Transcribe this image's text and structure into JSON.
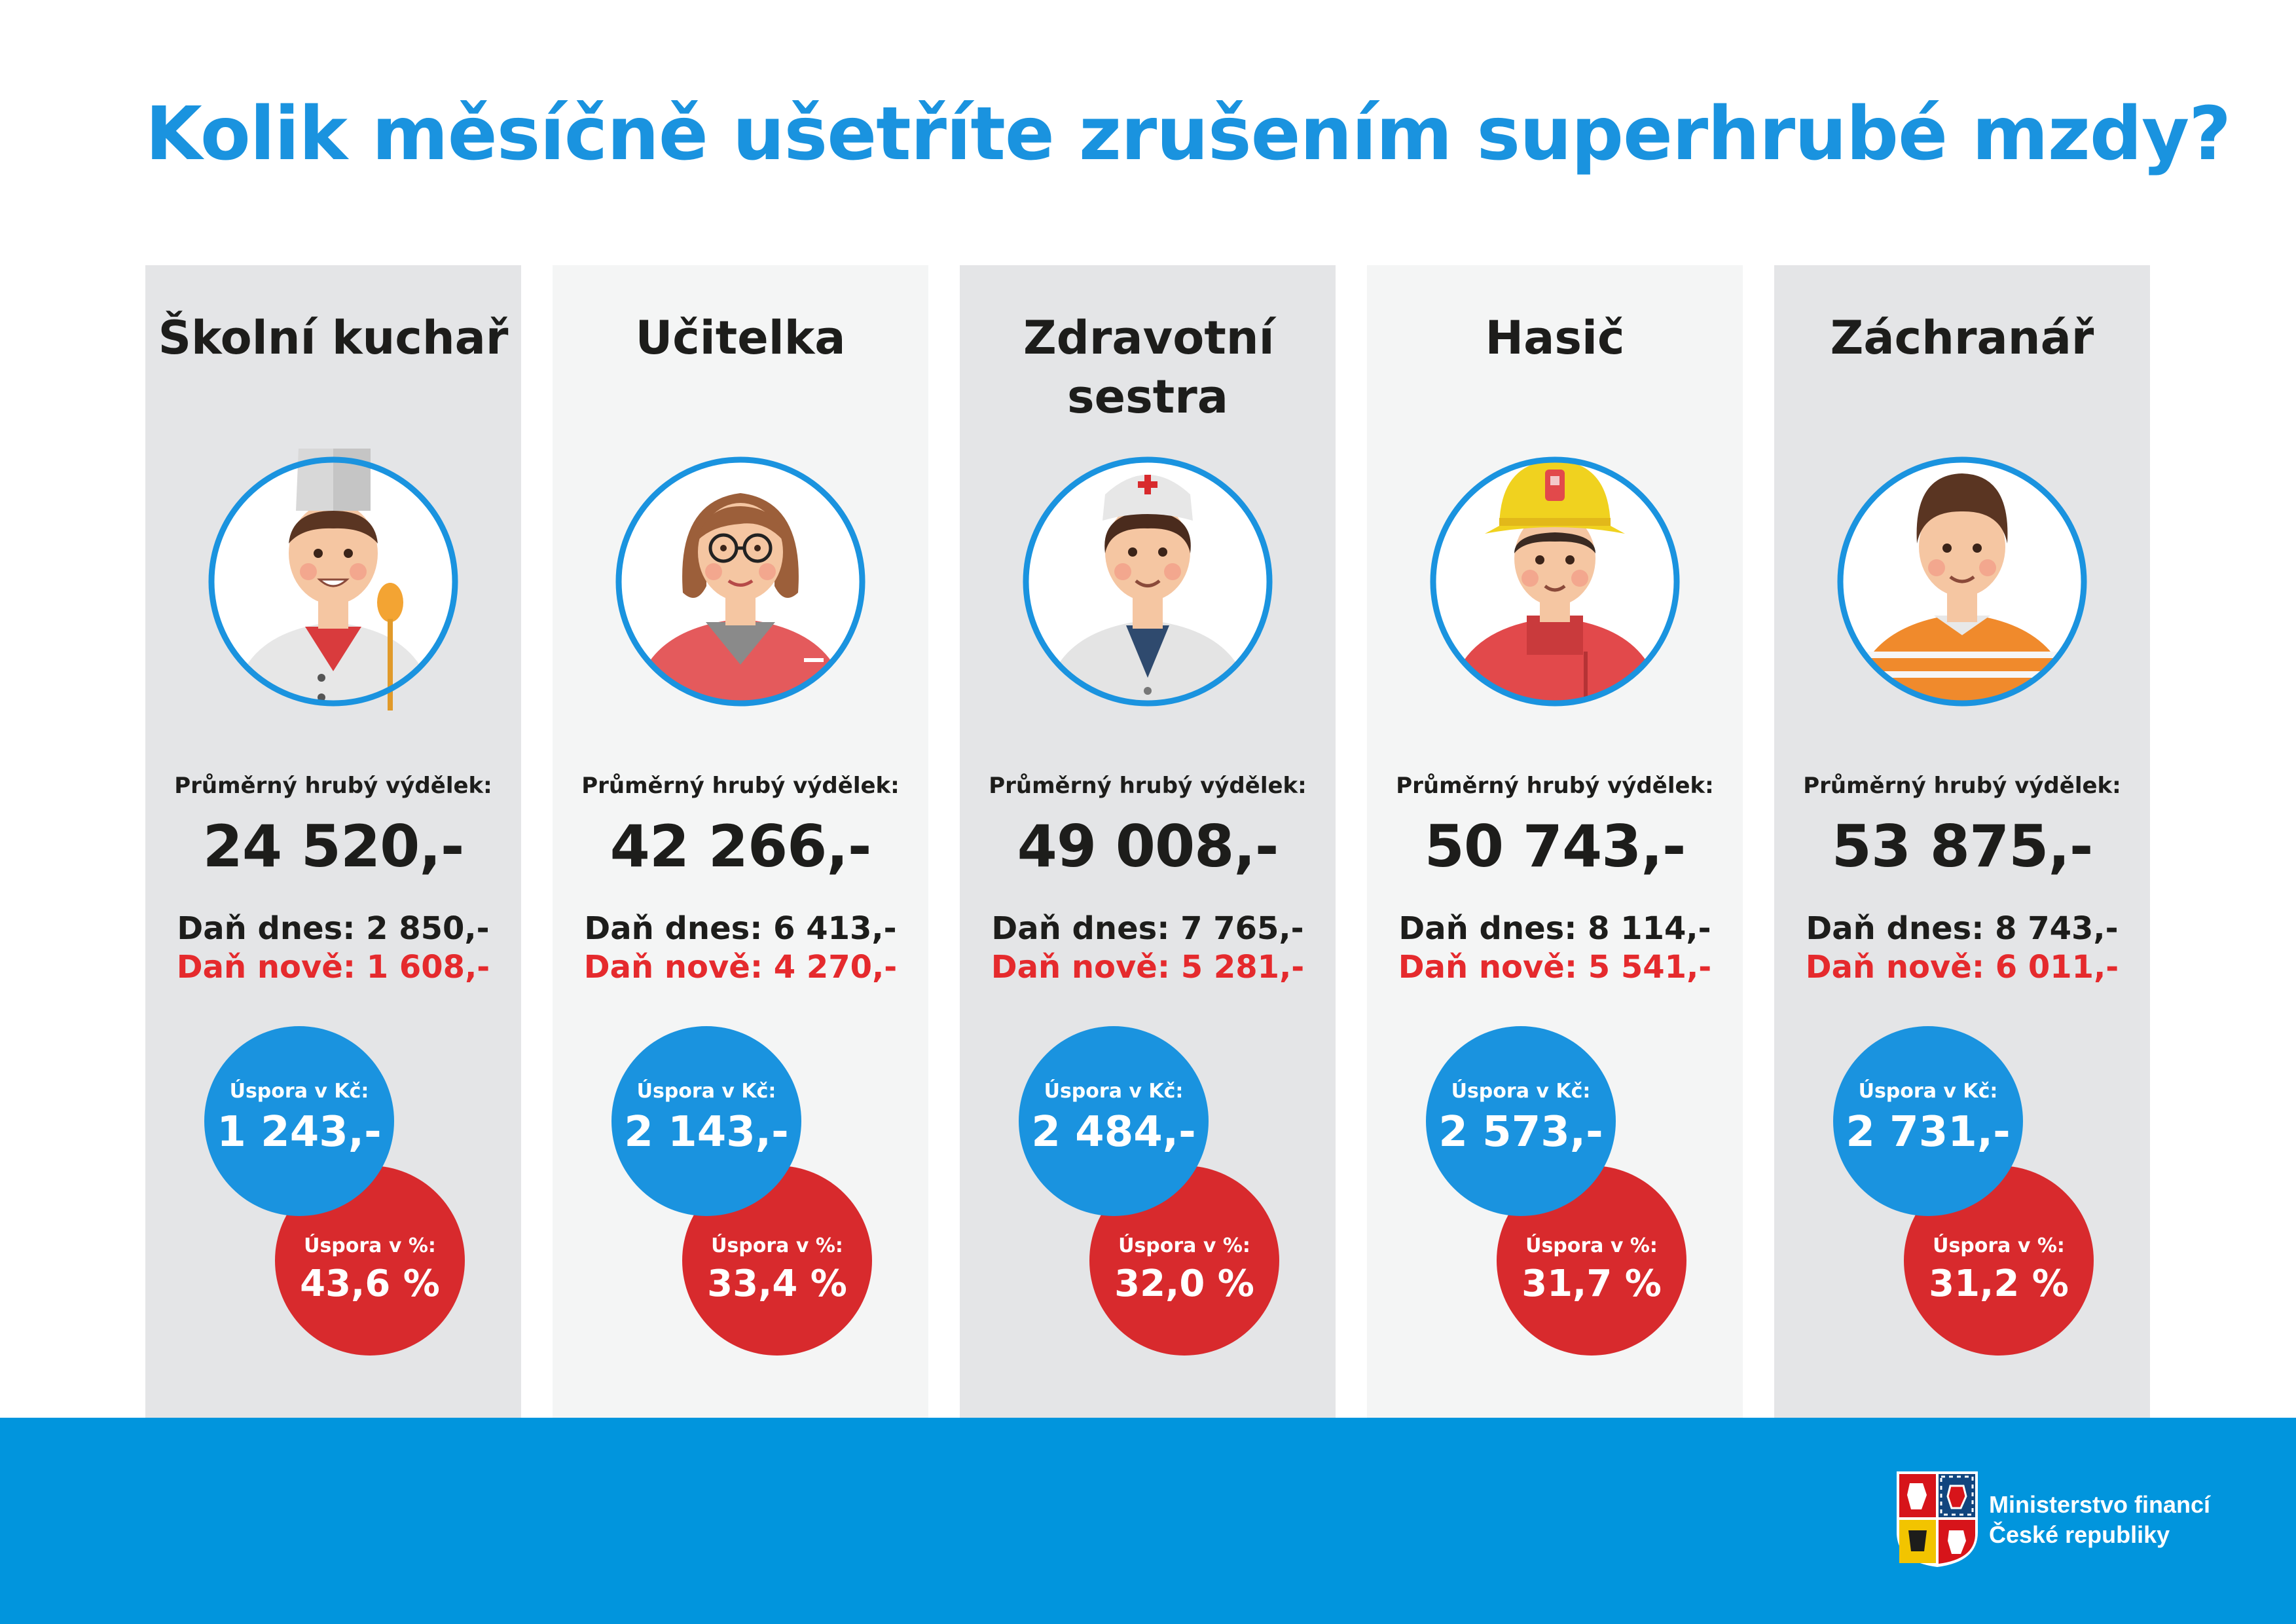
{
  "header": {
    "title": "Kolik měsíčně ušetříte zrušením superhrubé mzdy?"
  },
  "labels": {
    "avg": "Průměrný hrubý výdělek:",
    "saving_czk": "Úspora v Kč:",
    "saving_pct": "Úspora v %:"
  },
  "colors": {
    "blue": "#1a93df",
    "red": "#d82a2d",
    "card_dark": "#e4e5e7",
    "card_light": "#f4f5f5",
    "footer": "#0195dd"
  },
  "cards": [
    {
      "title": "Školní kuchař",
      "icon": "chef-avatar-icon",
      "avg": "24 520,-",
      "tax_today": "Daň dnes: 2 850,-",
      "tax_new": "Daň nově: 1 608,-",
      "saving_czk": "1 243,-",
      "saving_pct": "43,6 %"
    },
    {
      "title": "Učitelka",
      "icon": "teacher-avatar-icon",
      "avg": "42 266,-",
      "tax_today": "Daň dnes: 6 413,-",
      "tax_new": "Daň nově: 4 270,-",
      "saving_czk": "2 143,-",
      "saving_pct": "33,4 %"
    },
    {
      "title": "Zdravotní sestra",
      "icon": "nurse-avatar-icon",
      "avg": "49 008,-",
      "tax_today": "Daň dnes: 7 765,-",
      "tax_new": "Daň nově: 5 281,-",
      "saving_czk": "2 484,-",
      "saving_pct": "32,0 %"
    },
    {
      "title": "Hasič",
      "icon": "firefighter-avatar-icon",
      "avg": "50 743,-",
      "tax_today": "Daň dnes: 8 114,-",
      "tax_new": "Daň nově: 5 541,-",
      "saving_czk": "2 573,-",
      "saving_pct": "31,7 %"
    },
    {
      "title": "Záchranář",
      "icon": "paramedic-avatar-icon",
      "avg": "53 875,-",
      "tax_today": "Daň dnes: 8 743,-",
      "tax_new": "Daň nově: 6 011,-",
      "saving_czk": "2 731,-",
      "saving_pct": "31,2 %"
    }
  ],
  "footer": {
    "logo_icon": "coat-of-arms-icon",
    "org_line1": "Ministerstvo financí",
    "org_line2": "České republiky"
  }
}
